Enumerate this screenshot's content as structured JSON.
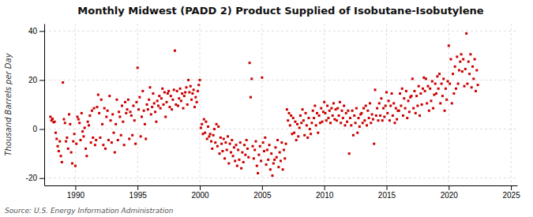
{
  "chart_data": {
    "type": "scatter",
    "title": "Monthly Midwest (PADD 2) Product Supplied of Isobutane-Isobutylene",
    "y_label": "Thousand Barrels per Day",
    "annotations": [
      "Source: U.S. Energy Information Administration"
    ],
    "color": "#cc0000",
    "marker": "square",
    "grid": true,
    "xlim": [
      1987.5,
      2025.5
    ],
    "ylim": [
      -23,
      43
    ],
    "yticks": [
      -20,
      0,
      20,
      40
    ],
    "xticks": [
      1990,
      1995,
      2000,
      2005,
      2010,
      2015,
      2020,
      2025
    ],
    "x": [
      1988.0,
      1988.083,
      1988.167,
      1988.25,
      1988.333,
      1988.417,
      1988.5,
      1988.583,
      1988.667,
      1988.75,
      1988.833,
      1988.917,
      1989.0,
      1989.083,
      1989.167,
      1989.25,
      1989.333,
      1989.417,
      1989.5,
      1989.583,
      1989.667,
      1989.75,
      1989.833,
      1989.917,
      1990.0,
      1990.083,
      1990.167,
      1990.25,
      1990.333,
      1990.417,
      1990.5,
      1990.583,
      1990.667,
      1990.75,
      1990.833,
      1990.917,
      1991.0,
      1991.083,
      1991.167,
      1991.25,
      1991.333,
      1991.417,
      1991.5,
      1991.583,
      1991.667,
      1991.75,
      1991.833,
      1991.917,
      1992.0,
      1992.083,
      1992.167,
      1992.25,
      1992.333,
      1992.417,
      1992.5,
      1992.583,
      1992.667,
      1992.75,
      1992.833,
      1992.917,
      1993.0,
      1993.083,
      1993.167,
      1993.25,
      1993.333,
      1993.417,
      1993.5,
      1993.583,
      1993.667,
      1993.75,
      1993.833,
      1993.917,
      1994.0,
      1994.083,
      1994.167,
      1994.25,
      1994.333,
      1994.417,
      1994.5,
      1994.583,
      1994.667,
      1994.75,
      1994.833,
      1994.917,
      1995.0,
      1995.083,
      1995.167,
      1995.25,
      1995.333,
      1995.417,
      1995.5,
      1995.583,
      1995.667,
      1995.75,
      1995.833,
      1995.917,
      1996.0,
      1996.083,
      1996.167,
      1996.25,
      1996.333,
      1996.417,
      1996.5,
      1996.583,
      1996.667,
      1996.75,
      1996.833,
      1996.917,
      1997.0,
      1997.083,
      1997.167,
      1997.25,
      1997.333,
      1997.417,
      1997.5,
      1997.583,
      1997.667,
      1997.75,
      1997.833,
      1997.917,
      1998.0,
      1998.083,
      1998.167,
      1998.25,
      1998.333,
      1998.417,
      1998.5,
      1998.583,
      1998.667,
      1998.75,
      1998.833,
      1998.917,
      1999.0,
      1999.083,
      1999.167,
      1999.25,
      1999.333,
      1999.417,
      1999.5,
      1999.583,
      1999.667,
      1999.75,
      1999.833,
      1999.917,
      2000.0,
      2000.083,
      2000.167,
      2000.25,
      2000.333,
      2000.417,
      2000.5,
      2000.583,
      2000.667,
      2000.75,
      2000.833,
      2000.917,
      2001.0,
      2001.083,
      2001.167,
      2001.25,
      2001.333,
      2001.417,
      2001.5,
      2001.583,
      2001.667,
      2001.75,
      2001.833,
      2001.917,
      2002.0,
      2002.083,
      2002.167,
      2002.25,
      2002.333,
      2002.417,
      2002.5,
      2002.583,
      2002.667,
      2002.75,
      2002.833,
      2002.917,
      2003.0,
      2003.083,
      2003.167,
      2003.25,
      2003.333,
      2003.417,
      2003.5,
      2003.583,
      2003.667,
      2003.75,
      2003.833,
      2003.917,
      2004.0,
      2004.083,
      2004.167,
      2004.25,
      2004.333,
      2004.417,
      2004.5,
      2004.583,
      2004.667,
      2004.75,
      2004.833,
      2004.917,
      2005.0,
      2005.083,
      2005.167,
      2005.25,
      2005.333,
      2005.417,
      2005.5,
      2005.583,
      2005.667,
      2005.75,
      2005.833,
      2005.917,
      2006.0,
      2006.083,
      2006.167,
      2006.25,
      2006.333,
      2006.417,
      2006.5,
      2006.583,
      2006.667,
      2006.75,
      2006.833,
      2006.917,
      2007.0,
      2007.083,
      2007.167,
      2007.25,
      2007.333,
      2007.417,
      2007.5,
      2007.583,
      2007.667,
      2007.75,
      2007.833,
      2007.917,
      2008.0,
      2008.083,
      2008.167,
      2008.25,
      2008.333,
      2008.417,
      2008.5,
      2008.583,
      2008.667,
      2008.75,
      2008.833,
      2008.917,
      2009.0,
      2009.083,
      2009.167,
      2009.25,
      2009.333,
      2009.417,
      2009.5,
      2009.583,
      2009.667,
      2009.75,
      2009.833,
      2009.917,
      2010.0,
      2010.083,
      2010.167,
      2010.25,
      2010.333,
      2010.417,
      2010.5,
      2010.583,
      2010.667,
      2010.75,
      2010.833,
      2010.917,
      2011.0,
      2011.083,
      2011.167,
      2011.25,
      2011.333,
      2011.417,
      2011.5,
      2011.583,
      2011.667,
      2011.75,
      2011.833,
      2011.917,
      2012.0,
      2012.083,
      2012.167,
      2012.25,
      2012.333,
      2012.417,
      2012.5,
      2012.583,
      2012.667,
      2012.75,
      2012.833,
      2012.917,
      2013.0,
      2013.083,
      2013.167,
      2013.25,
      2013.333,
      2013.417,
      2013.5,
      2013.583,
      2013.667,
      2013.75,
      2013.833,
      2013.917,
      2014.0,
      2014.083,
      2014.167,
      2014.25,
      2014.333,
      2014.417,
      2014.5,
      2014.583,
      2014.667,
      2014.75,
      2014.833,
      2014.917,
      2015.0,
      2015.083,
      2015.167,
      2015.25,
      2015.333,
      2015.417,
      2015.5,
      2015.583,
      2015.667,
      2015.75,
      2015.833,
      2015.917,
      2016.0,
      2016.083,
      2016.167,
      2016.25,
      2016.333,
      2016.417,
      2016.5,
      2016.583,
      2016.667,
      2016.75,
      2016.833,
      2016.917,
      2017.0,
      2017.083,
      2017.167,
      2017.25,
      2017.333,
      2017.417,
      2017.5,
      2017.583,
      2017.667,
      2017.75,
      2017.833,
      2017.917,
      2018.0,
      2018.083,
      2018.167,
      2018.25,
      2018.333,
      2018.417,
      2018.5,
      2018.583,
      2018.667,
      2018.75,
      2018.833,
      2018.917,
      2019.0,
      2019.083,
      2019.167,
      2019.25,
      2019.333,
      2019.417,
      2019.5,
      2019.583,
      2019.667,
      2019.75,
      2019.833,
      2019.917,
      2020.0,
      2020.083,
      2020.167,
      2020.25,
      2020.333,
      2020.417,
      2020.5,
      2020.583,
      2020.667,
      2020.75,
      2020.833,
      2020.917,
      2021.0,
      2021.083,
      2021.167,
      2021.25,
      2021.333,
      2021.417,
      2021.5,
      2021.583,
      2021.667,
      2021.75,
      2021.833,
      2021.917,
      2022.0,
      2022.083,
      2022.167,
      2022.25,
      2022.333
    ],
    "values": [
      5.0,
      3.5,
      4.2,
      2.8,
      3.0,
      -1.5,
      -4.0,
      -7.0,
      -9.0,
      -5.0,
      -11.0,
      -13.5,
      19.0,
      4.0,
      2.5,
      -5.0,
      -3.5,
      -8.0,
      6.0,
      2.0,
      -9.5,
      -14.0,
      -5.0,
      -2.0,
      -15.0,
      -6.0,
      5.0,
      4.0,
      2.5,
      -4.5,
      6.5,
      -1.0,
      -3.0,
      0.5,
      -8.0,
      -11.0,
      3.0,
      1.5,
      5.5,
      -5.5,
      7.5,
      -3.5,
      8.5,
      -6.5,
      -4.5,
      9.0,
      14.0,
      6.5,
      -3.5,
      12.0,
      2.0,
      -6.5,
      8.5,
      -8.0,
      5.0,
      7.5,
      -4.5,
      13.5,
      3.5,
      -5.5,
      6.0,
      -1.5,
      -9.5,
      2.0,
      12.0,
      -4.5,
      7.0,
      5.0,
      -2.5,
      9.5,
      3.0,
      -6.5,
      11.0,
      6.5,
      8.0,
      12.0,
      -4.0,
      7.0,
      5.5,
      -2.5,
      9.5,
      3.5,
      -6.0,
      11.0,
      25.0,
      8.0,
      13.0,
      -3.0,
      5.0,
      15.5,
      7.5,
      2.0,
      -4.0,
      10.0,
      8.0,
      12.0,
      17.0,
      6.0,
      9.0,
      14.5,
      10.5,
      7.0,
      3.0,
      11.5,
      9.5,
      13.5,
      8.5,
      12.5,
      16.5,
      10.0,
      15.0,
      5.0,
      11.0,
      14.5,
      15.5,
      9.0,
      13.5,
      8.0,
      12.0,
      16.0,
      32.0,
      10.0,
      15.5,
      9.5,
      12.5,
      16.5,
      11.5,
      14.5,
      8.5,
      13.5,
      15.0,
      17.0,
      10.0,
      20.0,
      15.0,
      17.5,
      12.0,
      14.5,
      16.0,
      9.0,
      13.0,
      11.0,
      15.5,
      18.0,
      20.0,
      0.5,
      2.0,
      -2.0,
      4.0,
      -1.5,
      3.0,
      -4.0,
      1.0,
      -3.0,
      -2.0,
      -5.0,
      -8.0,
      -2.5,
      0.0,
      -5.5,
      2.0,
      -7.0,
      1.0,
      -10.0,
      -3.5,
      -6.0,
      -9.0,
      -4.0,
      -12.0,
      -5.5,
      -8.5,
      -3.0,
      -14.0,
      -6.0,
      -9.5,
      -4.5,
      -11.0,
      -7.5,
      -13.0,
      -6.5,
      -15.0,
      -8.5,
      -12.5,
      -5.5,
      -16.0,
      -9.5,
      -13.5,
      -6.5,
      -10.5,
      -4.5,
      -8.0,
      -11.5,
      27.0,
      13.0,
      20.5,
      -7.0,
      -12.0,
      -8.5,
      -5.0,
      -15.0,
      -18.0,
      -10.5,
      -7.0,
      -13.0,
      21.0,
      -5.5,
      -9.0,
      -3.5,
      -14.5,
      -8.5,
      -12.5,
      -6.5,
      -16.5,
      -10.0,
      -19.0,
      -14.0,
      -12.5,
      -7.5,
      -11.5,
      -4.5,
      -15.5,
      -9.5,
      -13.0,
      -5.5,
      -16.5,
      -8.5,
      -12.0,
      -6.0,
      8.0,
      3.5,
      6.5,
      1.5,
      5.5,
      -2.0,
      4.5,
      -1.5,
      3.0,
      -4.5,
      2.0,
      -3.0,
      0.5,
      5.5,
      2.5,
      8.0,
      3.5,
      -2.5,
      6.5,
      1.5,
      -3.5,
      4.5,
      0.0,
      -2.0,
      2.5,
      7.5,
      4.5,
      9.5,
      1.5,
      6.5,
      -1.5,
      5.5,
      2.5,
      8.5,
      3.0,
      7.0,
      11.0,
      6.5,
      3.5,
      9.5,
      4.5,
      7.5,
      2.5,
      8.5,
      5.5,
      10.5,
      4.0,
      8.0,
      3.5,
      8.5,
      5.5,
      11.0,
      2.5,
      7.5,
      4.5,
      9.5,
      1.5,
      6.5,
      3.0,
      7.5,
      -10.0,
      4.5,
      1.5,
      7.5,
      -2.5,
      5.5,
      2.5,
      8.5,
      -1.5,
      4.5,
      1.0,
      6.0,
      6.5,
      2.5,
      8.5,
      3.5,
      9.5,
      1.5,
      7.5,
      4.5,
      10.5,
      2.5,
      6.0,
      4.0,
      -6.0,
      16.0,
      5.5,
      8.5,
      3.5,
      10.5,
      5.5,
      12.5,
      3.5,
      8.5,
      5.0,
      9.5,
      15.0,
      6.5,
      11.5,
      3.5,
      9.5,
      14.5,
      5.5,
      10.5,
      2.5,
      8.5,
      4.0,
      7.5,
      7.5,
      14.5,
      9.5,
      16.5,
      5.5,
      12.5,
      8.5,
      15.5,
      4.5,
      11.5,
      7.0,
      13.0,
      13.5,
      20.5,
      8.5,
      15.5,
      6.5,
      13.5,
      9.5,
      17.5,
      5.5,
      14.5,
      10.0,
      16.5,
      21.0,
      15.5,
      20.5,
      10.5,
      17.5,
      7.5,
      16.5,
      11.5,
      19.5,
      8.5,
      14.0,
      18.5,
      14.5,
      21.5,
      16.5,
      22.5,
      10.5,
      18.5,
      13.5,
      20.5,
      7.5,
      16.5,
      12.0,
      19.5,
      34.0,
      18.5,
      28.5,
      10.5,
      22.5,
      14.5,
      25.5,
      16.5,
      29.5,
      18.5,
      24.0,
      27.5,
      30.5,
      23.5,
      28.5,
      17.5,
      24.5,
      39.0,
      18.5,
      27.5,
      22.5,
      30.5,
      17.0,
      25.5,
      20.5,
      28.5,
      15.5,
      24.0,
      18.0
    ]
  }
}
